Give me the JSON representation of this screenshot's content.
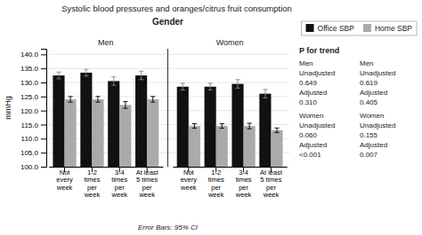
{
  "chart_data": {
    "type": "bar",
    "title": "Systolic blood pressures and oranges/citrus fruit consumption",
    "subtitle": "Gender",
    "ylabel": "mmHg",
    "footer": "Error Bars: 95% CI",
    "categories": [
      "Not\nevery\nweek",
      "1-2\ntimes\nper\nweek",
      "3-4\ntimes\nper\nweek",
      "At least\n5 times\nper\nweek"
    ],
    "series": [
      {
        "name": "Office SBP",
        "color": "#111111"
      },
      {
        "name": "Home SBP",
        "color": "#aaaaaa"
      }
    ],
    "panels": [
      {
        "title": "Men",
        "series": [
          {
            "values": [
              132.5,
              133.5,
              130.5,
              132.5
            ],
            "errors": [
              1.2,
              1.2,
              1.5,
              1.5
            ]
          },
          {
            "values": [
              124.0,
              124.0,
              122.0,
              124.0
            ],
            "errors": [
              1.0,
              1.0,
              1.2,
              1.0
            ]
          }
        ]
      },
      {
        "title": "Women",
        "series": [
          {
            "values": [
              128.5,
              128.5,
              129.5,
              126.0
            ],
            "errors": [
              1.2,
              1.2,
              1.5,
              1.5
            ]
          },
          {
            "values": [
              114.5,
              114.5,
              114.5,
              113.0
            ],
            "errors": [
              0.8,
              0.8,
              1.0,
              0.8
            ]
          }
        ]
      }
    ],
    "ylim": [
      100.0,
      142.0
    ],
    "yticks": [
      {
        "value": 100.0,
        "label": "100.0"
      },
      {
        "value": 105.0,
        "label": "105.0"
      },
      {
        "value": 110.0,
        "label": "110.0"
      },
      {
        "value": 115.0,
        "label": "115.0"
      },
      {
        "value": 120.0,
        "label": "120.0"
      },
      {
        "value": 125.0,
        "label": "125.0"
      },
      {
        "value": 130.0,
        "label": "130.0"
      },
      {
        "value": 135.0,
        "label": "135.0"
      },
      {
        "value": 140.0,
        "label": "140.0"
      }
    ],
    "grid": true,
    "legend": "upper right",
    "p_for_trend": {
      "title": "P for trend",
      "columns": [
        {
          "groups": [
            {
              "name": "Men",
              "rows": [
                {
                  "label": "Unadjusted",
                  "value": "0.649"
                },
                {
                  "label": "Adjusted",
                  "value": "0.310"
                }
              ]
            },
            {
              "name": "Women",
              "rows": [
                {
                  "label": "Unadjusted",
                  "value": "0.060"
                },
                {
                  "label": "Adjusted",
                  "value": "<0.001"
                }
              ]
            }
          ]
        },
        {
          "groups": [
            {
              "name": "Men",
              "rows": [
                {
                  "label": "Unadjusted",
                  "value": "0.619"
                },
                {
                  "label": "Adjusted",
                  "value": "0.405"
                }
              ]
            },
            {
              "name": "Women",
              "rows": [
                {
                  "label": "Unadjusted",
                  "value": "0.155"
                },
                {
                  "label": "Adjusted",
                  "value": "0.007"
                }
              ]
            }
          ]
        }
      ]
    }
  }
}
